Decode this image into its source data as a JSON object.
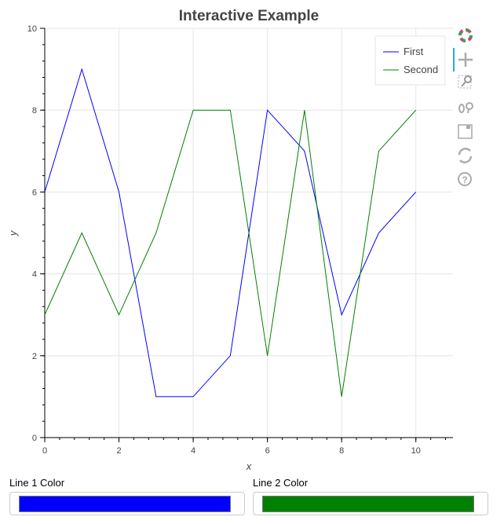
{
  "chart_data": {
    "type": "line",
    "title": "Interactive Example",
    "xlabel": "x",
    "ylabel": "y",
    "xlim": [
      0,
      11
    ],
    "ylim": [
      0,
      10
    ],
    "x_ticks": [
      0,
      2,
      4,
      6,
      8,
      10
    ],
    "y_ticks": [
      0,
      2,
      4,
      6,
      8,
      10
    ],
    "grid": true,
    "legend_position": "top-right",
    "x": [
      0,
      1,
      2,
      3,
      4,
      5,
      6,
      7,
      8,
      9,
      10
    ],
    "series": [
      {
        "name": "First",
        "color": "#0000ff",
        "values": [
          6,
          9,
          6,
          1,
          1,
          2,
          8,
          7,
          3,
          5,
          6
        ]
      },
      {
        "name": "Second",
        "color": "#008000",
        "values": [
          3,
          5,
          3,
          5,
          8,
          8,
          2,
          8,
          1,
          7,
          8
        ]
      }
    ]
  },
  "widgets": {
    "line1": {
      "label": "Line 1 Color",
      "color": "#0000ff"
    },
    "line2": {
      "label": "Line 2 Color",
      "color": "#008000"
    }
  },
  "toolbar": {
    "tools": [
      "bokeh-logo-icon",
      "pan-icon",
      "box-zoom-icon",
      "wheel-zoom-icon",
      "save-icon",
      "reset-icon",
      "help-icon"
    ]
  }
}
